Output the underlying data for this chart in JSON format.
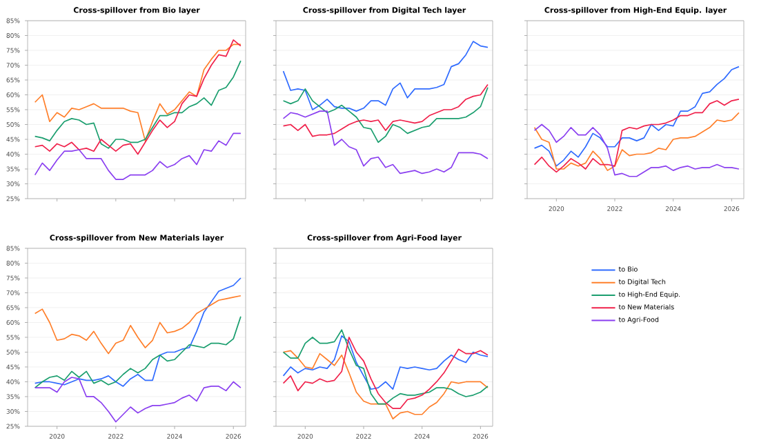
{
  "chart_data": [
    {
      "type": "line",
      "title": "Cross-spillover from Bio layer",
      "tick_labels": "y",
      "grid": "y",
      "xlim": [
        "2019-01",
        "2026-06"
      ],
      "xticks": [
        {
          "value": "2020",
          "label": null
        },
        {
          "value": "2022",
          "label": null
        },
        {
          "value": "2024",
          "label": null
        },
        {
          "value": "2026",
          "label": null
        }
      ],
      "ylim": [
        25,
        85
      ],
      "yticks": [
        {
          "value": 25,
          "label": "25%"
        },
        {
          "value": 30,
          "label": "30%"
        },
        {
          "value": 35,
          "label": "35%"
        },
        {
          "value": 40,
          "label": "40%"
        },
        {
          "value": 45,
          "label": "45%"
        },
        {
          "value": 50,
          "label": "50%"
        },
        {
          "value": 55,
          "label": "55%"
        },
        {
          "value": 60,
          "label": "60%"
        },
        {
          "value": 65,
          "label": "65%"
        },
        {
          "value": 70,
          "label": "70%"
        },
        {
          "value": 75,
          "label": "75%"
        },
        {
          "value": 80,
          "label": "80%"
        },
        {
          "value": 85,
          "label": "85%"
        }
      ],
      "x": [
        "2019-04",
        "2019-07",
        "2019-10",
        "2020-01",
        "2020-04",
        "2020-07",
        "2020-10",
        "2021-01",
        "2021-04",
        "2021-07",
        "2021-10",
        "2022-01",
        "2022-04",
        "2022-07",
        "2022-10",
        "2023-01",
        "2023-04",
        "2023-07",
        "2023-10",
        "2024-01",
        "2024-04",
        "2024-07",
        "2024-10",
        "2025-01",
        "2025-04",
        "2025-07",
        "2025-10",
        "2026-01",
        "2026-04"
      ],
      "series": [
        {
          "color": "#ff7f2a",
          "values": [
            57.5,
            60,
            51,
            54,
            52.5,
            55.5,
            55,
            56,
            57,
            55.5,
            55.5,
            55.5,
            55.5,
            54.5,
            54,
            44.5,
            51,
            57,
            53.5,
            55,
            58,
            61,
            59.5,
            68.5,
            72,
            75,
            75,
            77,
            77
          ]
        },
        {
          "color": "#1a9e6e",
          "values": [
            46,
            45.5,
            44.5,
            48,
            51,
            52,
            51.5,
            50,
            50.5,
            43.5,
            42,
            45,
            45,
            44,
            44,
            45,
            49,
            53,
            53,
            54,
            54,
            56,
            57,
            59,
            56.5,
            61.5,
            62.5,
            66,
            71.5
          ]
        },
        {
          "color": "#f0204a",
          "values": [
            42.5,
            43,
            41,
            43.5,
            42.5,
            44,
            41.5,
            42,
            41,
            45,
            43,
            41,
            43,
            43.5,
            40,
            44,
            48,
            51.5,
            49,
            51,
            57,
            60,
            59.5,
            65.5,
            70,
            73.5,
            73,
            78.5,
            76.5
          ]
        },
        {
          "color": "#8a3ff0",
          "values": [
            33,
            37,
            34.5,
            38,
            41,
            41,
            41.5,
            38.5,
            38.5,
            38.5,
            34.5,
            31.5,
            31.5,
            33,
            33,
            33,
            34.5,
            37.5,
            35.5,
            36.5,
            38.5,
            39.5,
            36.5,
            41.5,
            41,
            44.5,
            43,
            47,
            47
          ]
        }
      ]
    },
    {
      "type": "line",
      "title": "Cross-spillover from Digital Tech layer",
      "tick_labels": false,
      "grid": "y",
      "xlim": [
        "2019-01",
        "2026-06"
      ],
      "xticks": [
        {
          "value": "2020",
          "label": null
        },
        {
          "value": "2022",
          "label": null
        },
        {
          "value": "2024",
          "label": null
        },
        {
          "value": "2026",
          "label": null
        }
      ],
      "ylim": [
        25,
        85
      ],
      "yticks": [
        {
          "value": 25,
          "label": null
        },
        {
          "value": 30,
          "label": null
        },
        {
          "value": 35,
          "label": null
        },
        {
          "value": 40,
          "label": null
        },
        {
          "value": 45,
          "label": null
        },
        {
          "value": 50,
          "label": null
        },
        {
          "value": 55,
          "label": null
        },
        {
          "value": 60,
          "label": null
        },
        {
          "value": 65,
          "label": null
        },
        {
          "value": 70,
          "label": null
        },
        {
          "value": 75,
          "label": null
        },
        {
          "value": 80,
          "label": null
        },
        {
          "value": 85,
          "label": null
        }
      ],
      "x": [
        "2019-04",
        "2019-07",
        "2019-10",
        "2020-01",
        "2020-04",
        "2020-07",
        "2020-10",
        "2021-01",
        "2021-04",
        "2021-07",
        "2021-10",
        "2022-01",
        "2022-04",
        "2022-07",
        "2022-10",
        "2023-01",
        "2023-04",
        "2023-07",
        "2023-10",
        "2024-01",
        "2024-04",
        "2024-07",
        "2024-10",
        "2025-01",
        "2025-04",
        "2025-07",
        "2025-10",
        "2026-01",
        "2026-04"
      ],
      "series": [
        {
          "color": "#2f6bff",
          "values": [
            68,
            61.5,
            62,
            61.5,
            55,
            56.5,
            58.5,
            56,
            55.5,
            55.5,
            54.5,
            55.5,
            58,
            58,
            56.5,
            62,
            64,
            59,
            62,
            62,
            62,
            62.5,
            63.5,
            69.5,
            70.5,
            73.5,
            78,
            76.5,
            76
          ]
        },
        {
          "color": "#1a9e6e",
          "values": [
            58,
            57,
            58,
            62,
            58,
            56,
            54,
            55,
            56.5,
            54.5,
            52.5,
            49,
            48.5,
            44,
            46,
            50,
            49,
            47,
            48,
            49,
            49.5,
            52,
            52,
            52,
            52,
            52.5,
            54,
            56,
            62.5
          ]
        },
        {
          "color": "#f0204a",
          "values": [
            49.5,
            50,
            48,
            50,
            46,
            46.5,
            46.5,
            47,
            48.5,
            50,
            51,
            51.5,
            51,
            51.5,
            48,
            51,
            51.5,
            51,
            50.5,
            51,
            53,
            54,
            55,
            55,
            56,
            58.5,
            59.5,
            60,
            63.5
          ]
        },
        {
          "color": "#8a3ff0",
          "values": [
            52,
            54,
            53.5,
            52.5,
            53.5,
            54.5,
            54.5,
            43,
            45,
            42.5,
            41.5,
            36,
            38.5,
            39,
            35.5,
            36.5,
            33.5,
            34,
            34.5,
            33.5,
            34,
            35,
            34,
            35.5,
            40.5,
            40.5,
            40.5,
            40,
            38.5
          ]
        }
      ]
    },
    {
      "type": "line",
      "title": "Cross-spillover from High-End Equip. layer",
      "tick_labels": "x",
      "grid": "y",
      "xlim": [
        "2019-01",
        "2026-06"
      ],
      "xticks": [
        "2020",
        "2022",
        "2024",
        "2026"
      ],
      "ylim": [
        25,
        85
      ],
      "yticks": [
        {
          "value": 25,
          "label": null
        },
        {
          "value": 30,
          "label": null
        },
        {
          "value": 35,
          "label": null
        },
        {
          "value": 40,
          "label": null
        },
        {
          "value": 45,
          "label": null
        },
        {
          "value": 50,
          "label": null
        },
        {
          "value": 55,
          "label": null
        },
        {
          "value": 60,
          "label": null
        },
        {
          "value": 65,
          "label": null
        },
        {
          "value": 70,
          "label": null
        },
        {
          "value": 75,
          "label": null
        },
        {
          "value": 80,
          "label": null
        },
        {
          "value": 85,
          "label": null
        }
      ],
      "x": [
        "2019-04",
        "2019-07",
        "2019-10",
        "2020-01",
        "2020-04",
        "2020-07",
        "2020-10",
        "2021-01",
        "2021-04",
        "2021-07",
        "2021-10",
        "2022-01",
        "2022-04",
        "2022-07",
        "2022-10",
        "2023-01",
        "2023-04",
        "2023-07",
        "2023-10",
        "2024-01",
        "2024-04",
        "2024-07",
        "2024-10",
        "2025-01",
        "2025-04",
        "2025-07",
        "2025-10",
        "2026-01",
        "2026-04"
      ],
      "series": [
        {
          "color": "#2f6bff",
          "values": [
            42,
            43,
            41,
            36,
            38,
            41,
            39,
            42.5,
            47,
            45.5,
            42.5,
            42.5,
            45.5,
            45.5,
            44.5,
            45.5,
            50,
            48,
            50,
            49.5,
            54.5,
            54.5,
            56,
            60.5,
            61,
            63.5,
            65.5,
            68.5,
            69.5
          ]
        },
        {
          "color": "#ff7f2a",
          "values": [
            49,
            45,
            44,
            35,
            35,
            37,
            36,
            37,
            41,
            38.5,
            34.5,
            36,
            41.5,
            39.5,
            40,
            40,
            40.5,
            42,
            41.5,
            45,
            45.5,
            45.5,
            46,
            47.5,
            49,
            51.5,
            51,
            51.5,
            54
          ]
        },
        {
          "color": "#f0204a",
          "values": [
            36.5,
            39,
            36,
            34,
            36,
            38.5,
            37,
            35,
            38.5,
            36.5,
            36.5,
            36,
            48,
            49,
            48.5,
            49.5,
            50,
            50,
            50.5,
            51.5,
            53,
            53,
            54,
            54,
            57,
            58,
            56.5,
            58,
            58.5
          ]
        },
        {
          "color": "#8a3ff0",
          "values": [
            48,
            50,
            48,
            44,
            46,
            49,
            46.5,
            46.5,
            49,
            46.5,
            42,
            33,
            33.5,
            32.5,
            32.5,
            34,
            35.5,
            35.5,
            36,
            34.5,
            35.5,
            36,
            35,
            35.5,
            35.5,
            36.5,
            35.5,
            35.5,
            35
          ]
        }
      ]
    },
    {
      "type": "line",
      "title": "Cross-spillover from New Materials layer",
      "grid": "y",
      "xlim": [
        "2019-01",
        "2026-06"
      ],
      "xticks": [
        "2020",
        "2022",
        "2024",
        "2026"
      ],
      "ylim": [
        25,
        85
      ],
      "yticks": [
        {
          "value": 25,
          "label": "25%"
        },
        {
          "value": 30,
          "label": "30%"
        },
        {
          "value": 35,
          "label": "35%"
        },
        {
          "value": 40,
          "label": "40%"
        },
        {
          "value": 45,
          "label": "45%"
        },
        {
          "value": 50,
          "label": "50%"
        },
        {
          "value": 55,
          "label": "55%"
        },
        {
          "value": 60,
          "label": "60%"
        },
        {
          "value": 65,
          "label": "65%"
        },
        {
          "value": 70,
          "label": "70%"
        },
        {
          "value": 75,
          "label": "75%"
        },
        {
          "value": 80,
          "label": "80%"
        },
        {
          "value": 85,
          "label": "85%"
        }
      ],
      "x": [
        "2019-04",
        "2019-07",
        "2019-10",
        "2020-01",
        "2020-04",
        "2020-07",
        "2020-10",
        "2021-01",
        "2021-04",
        "2021-07",
        "2021-10",
        "2022-01",
        "2022-04",
        "2022-07",
        "2022-10",
        "2023-01",
        "2023-04",
        "2023-07",
        "2023-10",
        "2024-01",
        "2024-04",
        "2024-07",
        "2024-10",
        "2025-01",
        "2025-04",
        "2025-07",
        "2025-10",
        "2026-01",
        "2026-04"
      ],
      "series": [
        {
          "color": "#2f6bff",
          "values": [
            39.5,
            40,
            40,
            39.5,
            39,
            40,
            41,
            40.5,
            40.5,
            41,
            42,
            40,
            38.5,
            41,
            42.5,
            40.5,
            40.5,
            49,
            50,
            50,
            51,
            51.5,
            57,
            63.5,
            67,
            70.5,
            71.5,
            72.5,
            75
          ]
        },
        {
          "color": "#ff7f2a",
          "values": [
            63,
            64.5,
            60,
            54,
            54.5,
            56,
            55.5,
            54,
            57,
            53,
            49.5,
            53,
            54,
            59,
            55,
            51.5,
            54,
            60,
            56.5,
            57,
            58,
            60,
            63,
            64.5,
            66,
            67.5,
            68,
            68.5,
            69
          ]
        },
        {
          "color": "#1a9e6e",
          "values": [
            38,
            40,
            41.5,
            42,
            40.5,
            43.5,
            41.5,
            43.5,
            39.5,
            40.5,
            39,
            40,
            42.5,
            44.5,
            43,
            44.5,
            47.5,
            49,
            47,
            47.5,
            50,
            52.5,
            52,
            51.5,
            53,
            53,
            52.5,
            54.5,
            62
          ]
        },
        {
          "color": "#8a3ff0",
          "values": [
            38,
            38,
            38,
            36.5,
            40,
            41.5,
            41,
            35,
            35,
            33,
            30,
            26.5,
            29,
            31.5,
            29.5,
            31,
            32,
            32,
            32.5,
            33,
            34.5,
            35.5,
            33.5,
            38,
            38.5,
            38.5,
            37,
            40,
            38
          ]
        }
      ]
    },
    {
      "type": "line",
      "title": "Cross-spillover from Agri-Food layer",
      "tick_labels": "x",
      "grid": "y",
      "xlim": [
        "2019-01",
        "2026-06"
      ],
      "xticks": [
        "2020",
        "2022",
        "2024",
        "2026"
      ],
      "ylim": [
        25,
        85
      ],
      "yticks": [
        {
          "value": 25,
          "label": null
        },
        {
          "value": 30,
          "label": null
        },
        {
          "value": 35,
          "label": null
        },
        {
          "value": 40,
          "label": null
        },
        {
          "value": 45,
          "label": null
        },
        {
          "value": 50,
          "label": null
        },
        {
          "value": 55,
          "label": null
        },
        {
          "value": 60,
          "label": null
        },
        {
          "value": 65,
          "label": null
        },
        {
          "value": 70,
          "label": null
        },
        {
          "value": 75,
          "label": null
        },
        {
          "value": 80,
          "label": null
        },
        {
          "value": 85,
          "label": null
        }
      ],
      "x": [
        "2019-04",
        "2019-07",
        "2019-10",
        "2020-01",
        "2020-04",
        "2020-07",
        "2020-10",
        "2021-01",
        "2021-04",
        "2021-07",
        "2021-10",
        "2022-01",
        "2022-04",
        "2022-07",
        "2022-10",
        "2023-01",
        "2023-04",
        "2023-07",
        "2023-10",
        "2024-01",
        "2024-04",
        "2024-07",
        "2024-10",
        "2025-01",
        "2025-04",
        "2025-07",
        "2025-10",
        "2026-01",
        "2026-04"
      ],
      "series": [
        {
          "color": "#2f6bff",
          "values": [
            42,
            45,
            43,
            44.5,
            44,
            45,
            44.5,
            47.5,
            55.5,
            53.5,
            46.5,
            42,
            37.5,
            38,
            40,
            37.5,
            45,
            44.5,
            45,
            44.5,
            44,
            44.5,
            47,
            49,
            47.5,
            46.5,
            50,
            49,
            48.5
          ]
        },
        {
          "color": "#ff7f2a",
          "values": [
            50,
            50.5,
            48,
            45,
            44.5,
            49.5,
            47.5,
            45.5,
            49,
            43,
            36.5,
            33.5,
            32.5,
            32.5,
            32.5,
            27.5,
            29.5,
            30,
            29,
            29,
            31.5,
            33,
            36,
            40,
            39.5,
            40,
            40,
            40,
            38
          ]
        },
        {
          "color": "#1a9e6e",
          "values": [
            50,
            48,
            48,
            53,
            55,
            53,
            53,
            53.5,
            57.5,
            51,
            45.5,
            44.5,
            36,
            32.5,
            32.5,
            34.5,
            36,
            35.5,
            35.5,
            36,
            36.5,
            38,
            38,
            37.5,
            36,
            35,
            35.5,
            36.5,
            38.5
          ]
        },
        {
          "color": "#f0204a",
          "values": [
            39.5,
            42,
            37,
            40,
            39.5,
            41,
            40,
            40.5,
            43.5,
            55,
            50,
            47,
            41,
            36,
            33,
            31,
            31,
            34,
            34.5,
            35.5,
            37.5,
            40,
            43,
            47,
            51,
            49.5,
            49.5,
            50.5,
            49
          ]
        }
      ]
    },
    {
      "type": "other",
      "legend": "left",
      "series": [
        {
          "name": "to Bio",
          "color": "#2f6bff"
        },
        {
          "name": "to Digital Tech",
          "color": "#ff7f2a"
        },
        {
          "name": "to High-End Equip.",
          "color": "#1a9e6e"
        },
        {
          "name": "to New Materials",
          "color": "#f0204a"
        },
        {
          "name": "to Agri-Food",
          "color": "#8a3ff0"
        }
      ]
    }
  ]
}
